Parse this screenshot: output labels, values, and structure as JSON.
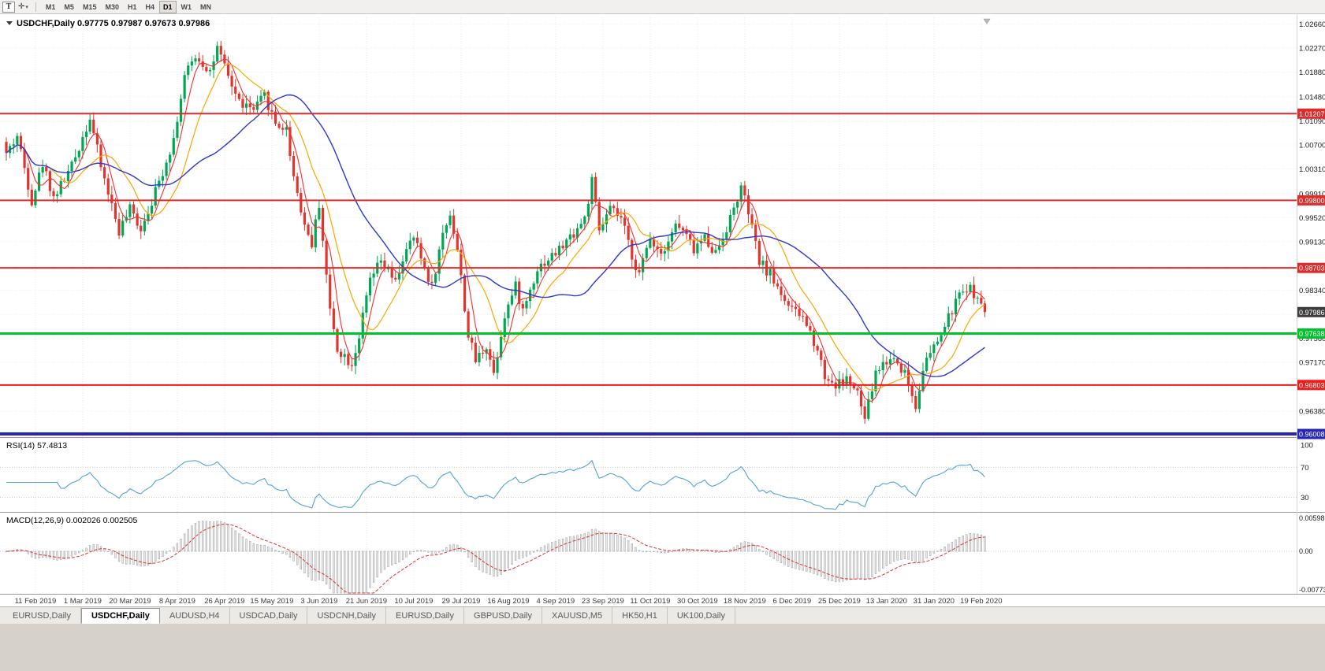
{
  "toolbar": {
    "text_tool": "T",
    "cursor_tool_caret": "▾",
    "crosshair_glyph": "✛",
    "timeframes": [
      "M1",
      "M5",
      "M15",
      "M30",
      "H1",
      "H4",
      "D1",
      "W1",
      "MN"
    ],
    "active_timeframe": "D1"
  },
  "main_chart": {
    "type": "candlestick",
    "symbol_title": "USDCHF,Daily",
    "ohlc": {
      "open": "0.97775",
      "high": "0.97987",
      "low": "0.97673",
      "close": "0.97986"
    },
    "y_axis_ticks": [
      "1.02660",
      "1.02270",
      "1.01880",
      "1.01480",
      "1.01090",
      "1.00700",
      "1.00310",
      "0.99910",
      "0.99520",
      "0.99130",
      "0.98730",
      "0.98340",
      "0.97950",
      "0.97560",
      "0.97170",
      "0.96770",
      "0.96380"
    ],
    "price_max": 1.0277,
    "price_min": 0.9597,
    "x_axis_labels": [
      "11 Feb 2019",
      "1 Mar 2019",
      "20 Mar 2019",
      "8 Apr 2019",
      "26 Apr 2019",
      "15 May 2019",
      "3 Jun 2019",
      "21 Jun 2019",
      "10 Jul 2019",
      "29 Jul 2019",
      "16 Aug 2019",
      "4 Sep 2019",
      "23 Sep 2019",
      "11 Oct 2019",
      "30 Oct 2019",
      "18 Nov 2019",
      "6 Dec 2019",
      "25 Dec 2019",
      "13 Jan 2020",
      "31 Jan 2020",
      "19 Feb 2020"
    ],
    "horizontal_lines": [
      {
        "value": 1.01207,
        "label": "1.01207",
        "color": "#dd2c2c",
        "width": 2
      },
      {
        "value": 0.998,
        "label": "0.99800",
        "color": "#dd2c2c",
        "width": 2
      },
      {
        "value": 0.98703,
        "label": "0.98703",
        "color": "#dd2c2c",
        "width": 2
      },
      {
        "value": 0.97638,
        "label": "0.97638",
        "color": "#00c22b",
        "width": 3
      },
      {
        "value": 0.96803,
        "label": "0.96803",
        "color": "#ee1c1c",
        "width": 2
      },
      {
        "value": 0.96008,
        "label": "0.96008",
        "color": "#2727b4",
        "width": 4
      }
    ],
    "current_price": {
      "value": 0.97986,
      "label": "0.97986",
      "badge_color": "#3d3d3d"
    },
    "candles": 270,
    "price_waypoints": [
      [
        0,
        1.0055
      ],
      [
        3,
        1.0085
      ],
      [
        7,
        0.998
      ],
      [
        10,
        1.004
      ],
      [
        13,
        0.9985
      ],
      [
        18,
        1.0035
      ],
      [
        23,
        1.0115
      ],
      [
        26,
        1.0035
      ],
      [
        31,
        0.993
      ],
      [
        34,
        0.9965
      ],
      [
        37,
        0.9935
      ],
      [
        42,
        1.001
      ],
      [
        46,
        1.008
      ],
      [
        49,
        1.018
      ],
      [
        52,
        1.0215
      ],
      [
        56,
        1.019
      ],
      [
        58,
        1.0225
      ],
      [
        61,
        1.018
      ],
      [
        64,
        1.014
      ],
      [
        68,
        1.0125
      ],
      [
        71,
        1.015
      ],
      [
        74,
        1.0105
      ],
      [
        77,
        1.0095
      ],
      [
        79,
        1.002
      ],
      [
        82,
        0.994
      ],
      [
        84,
        0.991
      ],
      [
        86,
        0.9975
      ],
      [
        89,
        0.98
      ],
      [
        91,
        0.974
      ],
      [
        95,
        0.9715
      ],
      [
        97,
        0.976
      ],
      [
        100,
        0.985
      ],
      [
        103,
        0.988
      ],
      [
        107,
        0.9845
      ],
      [
        109,
        0.9885
      ],
      [
        112,
        0.992
      ],
      [
        115,
        0.987
      ],
      [
        117,
        0.984
      ],
      [
        120,
        0.9925
      ],
      [
        122,
        0.996
      ],
      [
        124,
        0.99
      ],
      [
        127,
        0.976
      ],
      [
        129,
        0.972
      ],
      [
        132,
        0.9745
      ],
      [
        134,
        0.97
      ],
      [
        137,
        0.9795
      ],
      [
        140,
        0.984
      ],
      [
        142,
        0.98
      ],
      [
        146,
        0.987
      ],
      [
        149,
        0.9885
      ],
      [
        152,
        0.99
      ],
      [
        155,
        0.992
      ],
      [
        159,
        0.995
      ],
      [
        161,
        1.001
      ],
      [
        163,
        0.993
      ],
      [
        166,
        0.9965
      ],
      [
        169,
        0.995
      ],
      [
        172,
        0.989
      ],
      [
        174,
        0.986
      ],
      [
        177,
        0.992
      ],
      [
        180,
        0.9895
      ],
      [
        184,
        0.994
      ],
      [
        186,
        0.993
      ],
      [
        189,
        0.99
      ],
      [
        192,
        0.992
      ],
      [
        195,
        0.9895
      ],
      [
        199,
        0.995
      ],
      [
        202,
        1.0
      ],
      [
        204,
        0.996
      ],
      [
        207,
        0.988
      ],
      [
        210,
        0.986
      ],
      [
        213,
        0.983
      ],
      [
        216,
        0.98
      ],
      [
        219,
        0.979
      ],
      [
        223,
        0.974
      ],
      [
        225,
        0.9695
      ],
      [
        228,
        0.968
      ],
      [
        231,
        0.969
      ],
      [
        234,
        0.9665
      ],
      [
        236,
        0.9625
      ],
      [
        239,
        0.97
      ],
      [
        241,
        0.9715
      ],
      [
        244,
        0.9725
      ],
      [
        247,
        0.97
      ],
      [
        250,
        0.9645
      ],
      [
        252,
        0.971
      ],
      [
        255,
        0.974
      ],
      [
        258,
        0.9775
      ],
      [
        261,
        0.9815
      ],
      [
        264,
        0.984
      ],
      [
        266,
        0.983
      ],
      [
        269,
        0.97986
      ]
    ],
    "colors": {
      "bull": "#00a651",
      "bear": "#e0352f",
      "ma_fast": "#ff2d2d",
      "ma_medium": "#ffa500",
      "ma_slow": "#2d39cf",
      "grid": "#e7e7e7"
    }
  },
  "rsi_panel": {
    "label": "RSI(14)",
    "value": "57.4813",
    "axis_labels": [
      "100",
      "70",
      "30"
    ],
    "line_color": "#53a2dd"
  },
  "macd_panel": {
    "label": "MACD(12,26,9)",
    "value1": "0.002026",
    "value2": "0.002505",
    "axis_labels": [
      "0.005986",
      "0.00",
      "-0.007730"
    ],
    "histogram_fill": "#eaeaea",
    "histogram_stroke": "#9b9b9b",
    "signal_color": "#e03131"
  },
  "tabs": [
    {
      "label": "EURUSD,Daily",
      "active": false
    },
    {
      "label": "USDCHF,Daily",
      "active": true
    },
    {
      "label": "AUDUSD,H4",
      "active": false
    },
    {
      "label": "USDCAD,Daily",
      "active": false
    },
    {
      "label": "USDCNH,Daily",
      "active": false
    },
    {
      "label": "EURUSD,Daily",
      "active": false
    },
    {
      "label": "GBPUSD,Daily",
      "active": false
    },
    {
      "label": "XAUUSD,M5",
      "active": false
    },
    {
      "label": "HK50,H1",
      "active": false
    },
    {
      "label": "UK100,Daily",
      "active": false
    }
  ]
}
